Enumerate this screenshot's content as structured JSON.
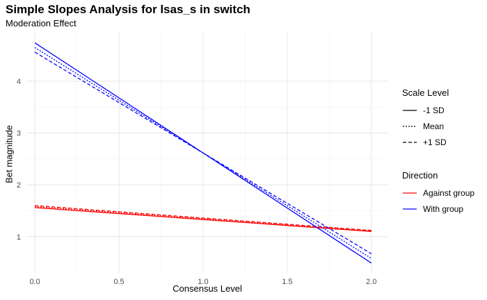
{
  "chart_data": {
    "type": "line",
    "title": "Simple Slopes Analysis for lsas_s in switch",
    "subtitle": "Moderation Effect",
    "xlabel": "Consensus Level",
    "ylabel": "Bet magnitude",
    "xlim": [
      -0.05,
      2.1
    ],
    "ylim": [
      0.3,
      4.95
    ],
    "x_ticks": [
      0.0,
      0.5,
      1.0,
      1.5,
      2.0
    ],
    "x_tick_labels": [
      "0.0",
      "0.5",
      "1.0",
      "1.5",
      "2.0"
    ],
    "y_ticks": [
      1,
      2,
      3,
      4
    ],
    "y_tick_labels": [
      "1",
      "2",
      "3",
      "4"
    ],
    "grid": true,
    "legend_placement": "right",
    "legends": [
      {
        "title": "Scale Level",
        "items": [
          {
            "label": "-1 SD",
            "dash": "solid"
          },
          {
            "label": "Mean",
            "dash": "dotted"
          },
          {
            "label": "+1 SD",
            "dash": "dashed"
          }
        ]
      },
      {
        "title": "Direction",
        "items": [
          {
            "label": "Against group",
            "color": "#ff0000"
          },
          {
            "label": "With group",
            "color": "#0000ff"
          }
        ]
      }
    ],
    "series": [
      {
        "direction": "Against group",
        "scale": "-1 SD",
        "color": "#ff0000",
        "dash": "solid",
        "x": [
          0,
          2
        ],
        "y": [
          1.56,
          1.1
        ]
      },
      {
        "direction": "Against group",
        "scale": "Mean",
        "color": "#ff0000",
        "dash": "dotted",
        "x": [
          0,
          2
        ],
        "y": [
          1.58,
          1.11
        ]
      },
      {
        "direction": "Against group",
        "scale": "+1 SD",
        "color": "#ff0000",
        "dash": "dashed",
        "x": [
          0,
          2
        ],
        "y": [
          1.6,
          1.12
        ]
      },
      {
        "direction": "With group",
        "scale": "-1 SD",
        "color": "#0000ff",
        "dash": "solid",
        "x": [
          0,
          2
        ],
        "y": [
          4.74,
          0.49
        ]
      },
      {
        "direction": "With group",
        "scale": "Mean",
        "color": "#0000ff",
        "dash": "dotted",
        "x": [
          0,
          2
        ],
        "y": [
          4.65,
          0.58
        ]
      },
      {
        "direction": "With group",
        "scale": "+1 SD",
        "color": "#0000ff",
        "dash": "dashed",
        "x": [
          0,
          2
        ],
        "y": [
          4.56,
          0.67
        ]
      }
    ]
  }
}
